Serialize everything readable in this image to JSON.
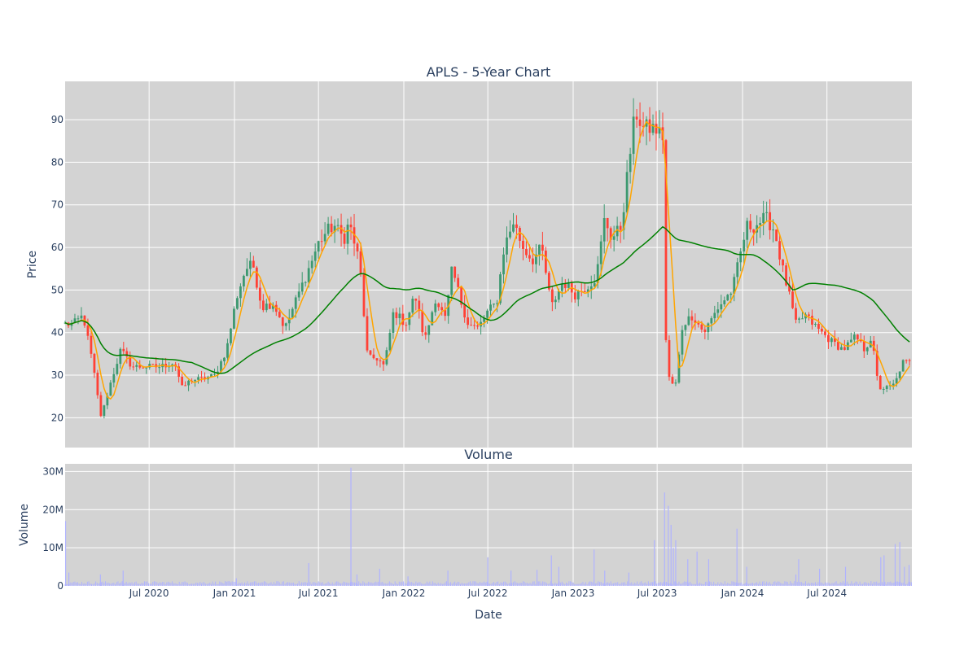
{
  "chart_data": [
    {
      "type": "candlestick",
      "title": "APLS - 5-Year Chart",
      "ylabel": "Price",
      "ylim": [
        13,
        99
      ],
      "yticks": [
        20,
        30,
        40,
        50,
        60,
        70,
        80,
        90
      ],
      "xlim": [
        "2020-01-02",
        "2024-12-31"
      ],
      "grid": true,
      "up_color": "#3d9970",
      "down_color": "#ff4136",
      "moving_averages": [
        {
          "color": "#ffa500"
        },
        {
          "color": "#008000"
        }
      ],
      "close_anchors": {
        "dates": [
          "2020-01-02",
          "2020-01-20",
          "2020-02-10",
          "2020-03-01",
          "2020-03-12",
          "2020-03-20",
          "2020-04-03",
          "2020-05-01",
          "2020-05-25",
          "2020-06-25",
          "2020-07-25",
          "2020-08-25",
          "2020-09-10",
          "2020-10-01",
          "2020-10-20",
          "2020-11-20",
          "2020-12-15",
          "2021-01-05",
          "2021-01-25",
          "2021-02-10",
          "2021-03-01",
          "2021-03-25",
          "2021-04-20",
          "2021-05-15",
          "2021-06-10",
          "2021-07-01",
          "2021-07-20",
          "2021-08-05",
          "2021-08-25",
          "2021-09-05",
          "2021-09-28",
          "2021-10-15",
          "2021-11-05",
          "2021-11-20",
          "2021-12-10",
          "2022-01-05",
          "2022-01-25",
          "2022-02-15",
          "2022-03-10",
          "2022-04-01",
          "2022-04-15",
          "2022-05-05",
          "2022-05-20",
          "2022-06-10",
          "2022-07-01",
          "2022-07-20",
          "2022-08-05",
          "2022-08-25",
          "2022-09-15",
          "2022-10-05",
          "2022-10-25",
          "2022-11-15",
          "2022-12-10",
          "2023-01-05",
          "2023-02-01",
          "2023-02-20",
          "2023-03-10",
          "2023-03-25",
          "2023-04-15",
          "2023-05-01",
          "2023-05-15",
          "2023-06-01",
          "2023-06-25",
          "2023-07-14",
          "2023-07-17",
          "2023-07-28",
          "2023-08-10",
          "2023-08-25",
          "2023-09-15",
          "2023-10-10",
          "2023-11-10",
          "2023-12-10",
          "2024-01-10",
          "2024-01-25",
          "2024-02-20",
          "2024-03-10",
          "2024-03-25",
          "2024-04-10",
          "2024-04-25",
          "2024-05-15",
          "2024-06-10",
          "2024-07-10",
          "2024-08-05",
          "2024-09-01",
          "2024-09-20",
          "2024-10-05",
          "2024-10-20",
          "2024-11-10",
          "2024-11-25",
          "2024-12-10",
          "2024-12-31"
        ],
        "values": [
          42,
          42,
          44,
          33,
          25,
          20,
          26,
          36,
          32,
          32,
          32,
          33,
          27,
          29,
          29,
          30,
          36,
          48,
          55,
          56,
          46,
          47,
          41,
          48,
          55,
          61,
          64,
          65,
          62,
          66,
          56,
          34,
          34,
          32,
          45,
          42,
          49,
          38,
          48,
          43,
          55,
          47,
          42,
          41,
          45,
          47,
          60,
          66,
          60,
          57,
          60,
          46,
          52,
          49,
          51,
          53,
          67,
          62,
          65,
          80,
          92,
          88,
          88,
          86,
          42,
          28,
          28,
          42,
          44,
          40,
          46,
          50,
          65,
          65,
          67,
          64,
          56,
          49,
          42,
          44,
          41,
          38,
          36,
          39,
          36,
          39,
          27,
          27,
          28,
          33,
          33
        ]
      }
    },
    {
      "type": "bar",
      "title": "Volume",
      "ylabel": "Volume",
      "xlabel": "Date",
      "ylim": [
        0,
        32000000
      ],
      "yticks": [
        0,
        10000000,
        20000000,
        30000000
      ],
      "ytick_labels": [
        "0",
        "10M",
        "20M",
        "30M"
      ],
      "xticks": [
        "2020-07-01",
        "2021-01-01",
        "2021-07-01",
        "2022-01-01",
        "2022-07-01",
        "2023-01-01",
        "2023-07-01",
        "2024-01-01",
        "2024-07-01"
      ],
      "xtick_labels": [
        "Jul 2020",
        "Jan 2021",
        "Jul 2021",
        "Jan 2022",
        "Jul 2022",
        "Jan 2023",
        "Jul 2023",
        "Jan 2024",
        "Jul 2024"
      ],
      "color": "#b0b3ff",
      "baseline_volume": 900000,
      "spikes": [
        {
          "date": "2020-01-03",
          "value": 17000000
        },
        {
          "date": "2020-01-10",
          "value": 3500000
        },
        {
          "date": "2020-03-18",
          "value": 3000000
        },
        {
          "date": "2020-05-06",
          "value": 4000000
        },
        {
          "date": "2021-01-05",
          "value": 2000000
        },
        {
          "date": "2021-06-10",
          "value": 6000000
        },
        {
          "date": "2021-09-09",
          "value": 31000000
        },
        {
          "date": "2021-09-22",
          "value": 3000000
        },
        {
          "date": "2021-11-10",
          "value": 4500000
        },
        {
          "date": "2022-01-10",
          "value": 2500000
        },
        {
          "date": "2022-04-06",
          "value": 4000000
        },
        {
          "date": "2022-07-01",
          "value": 7500000
        },
        {
          "date": "2022-08-20",
          "value": 4000000
        },
        {
          "date": "2022-10-15",
          "value": 4200000
        },
        {
          "date": "2022-11-15",
          "value": 8000000
        },
        {
          "date": "2022-12-01",
          "value": 5000000
        },
        {
          "date": "2023-02-15",
          "value": 9500000
        },
        {
          "date": "2023-03-10",
          "value": 4000000
        },
        {
          "date": "2023-05-01",
          "value": 3500000
        },
        {
          "date": "2023-06-25",
          "value": 12000000
        },
        {
          "date": "2023-07-17",
          "value": 24500000
        },
        {
          "date": "2023-07-25",
          "value": 21000000
        },
        {
          "date": "2023-07-31",
          "value": 16000000
        },
        {
          "date": "2023-08-05",
          "value": 10000000
        },
        {
          "date": "2023-08-10",
          "value": 12000000
        },
        {
          "date": "2023-09-05",
          "value": 7000000
        },
        {
          "date": "2023-09-25",
          "value": 9000000
        },
        {
          "date": "2023-10-20",
          "value": 7000000
        },
        {
          "date": "2023-12-20",
          "value": 15000000
        },
        {
          "date": "2024-01-10",
          "value": 5000000
        },
        {
          "date": "2024-04-25",
          "value": 3000000
        },
        {
          "date": "2024-05-01",
          "value": 7000000
        },
        {
          "date": "2024-06-15",
          "value": 4500000
        },
        {
          "date": "2024-08-10",
          "value": 5000000
        },
        {
          "date": "2024-10-25",
          "value": 7500000
        },
        {
          "date": "2024-11-01",
          "value": 8000000
        },
        {
          "date": "2024-11-25",
          "value": 11000000
        },
        {
          "date": "2024-12-05",
          "value": 11500000
        },
        {
          "date": "2024-12-15",
          "value": 5000000
        },
        {
          "date": "2024-12-25",
          "value": 5500000
        }
      ]
    }
  ]
}
